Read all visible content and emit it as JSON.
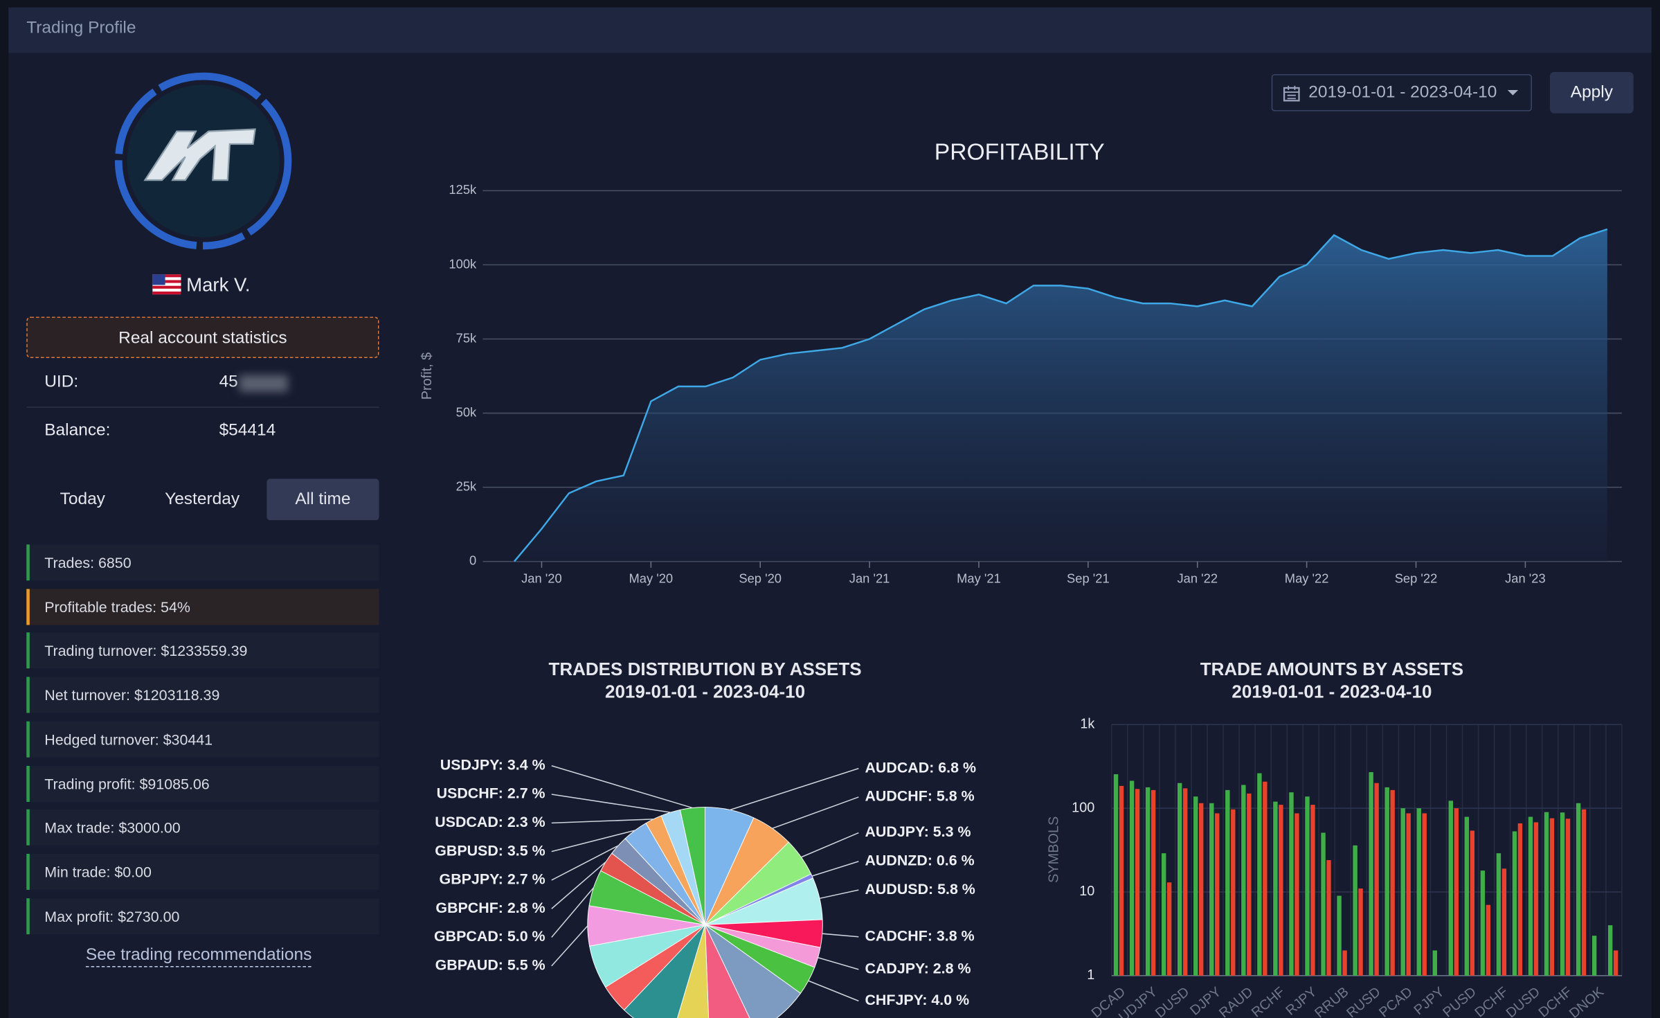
{
  "header": {
    "title": "Trading Profile"
  },
  "profile": {
    "name": "Mark V.",
    "badge": "Real account statistics",
    "uid_label": "UID:",
    "uid": "45",
    "balance_label": "Balance:",
    "balance": "$54414"
  },
  "tabs": [
    "Today",
    "Yesterday",
    "All time"
  ],
  "stats": [
    "Trades: 6850",
    "Profitable trades: 54%",
    "Trading turnover: $1233559.39",
    "Net turnover: $1203118.39",
    "Hedged turnover: $30441",
    "Trading profit: $91085.06",
    "Max trade: $3000.00",
    "Min trade: $0.00",
    "Max profit: $2730.00"
  ],
  "link": "See trading recommendations",
  "filter": {
    "date_range": "2019-01-01 - 2023-04-10",
    "apply": "Apply"
  },
  "chart_data": [
    {
      "type": "line",
      "title": "PROFITABILITY",
      "ylabel": "Profit, $",
      "color": "#3fa9e8",
      "grid": true,
      "x": [
        "2019-12",
        "2020-01",
        "2020-02",
        "2020-03",
        "2020-04",
        "2020-05",
        "2020-06",
        "2020-07",
        "2020-08",
        "2020-09",
        "2020-10",
        "2020-11",
        "2020-12",
        "2021-01",
        "2021-02",
        "2021-03",
        "2021-04",
        "2021-05",
        "2021-06",
        "2021-07",
        "2021-08",
        "2021-09",
        "2021-10",
        "2021-11",
        "2021-12",
        "2022-01",
        "2022-02",
        "2022-03",
        "2022-04",
        "2022-05",
        "2022-06",
        "2022-07",
        "2022-08",
        "2022-09",
        "2022-10",
        "2022-11",
        "2022-12",
        "2023-01",
        "2023-02",
        "2023-03",
        "2023-04"
      ],
      "values": [
        0,
        11000,
        23000,
        27000,
        29000,
        54000,
        59000,
        59000,
        62000,
        68000,
        70000,
        71000,
        72000,
        75000,
        80000,
        85000,
        88000,
        90000,
        87000,
        93000,
        93000,
        92000,
        89000,
        87000,
        87000,
        86000,
        88000,
        86000,
        96000,
        100000,
        110000,
        105000,
        102000,
        104000,
        105000,
        104000,
        105000,
        103000,
        103000,
        109000,
        112000
      ],
      "xlim": [
        "2019-11",
        "2023-05"
      ],
      "xticks": [
        {
          "value": "2020-01",
          "label": "Jan '20"
        },
        {
          "value": "2020-05",
          "label": "May '20"
        },
        {
          "value": "2020-09",
          "label": "Sep '20"
        },
        {
          "value": "2021-01",
          "label": "Jan '21"
        },
        {
          "value": "2021-05",
          "label": "May '21"
        },
        {
          "value": "2021-09",
          "label": "Sep '21"
        },
        {
          "value": "2022-01",
          "label": "Jan '22"
        },
        {
          "value": "2022-05",
          "label": "May '22"
        },
        {
          "value": "2022-09",
          "label": "Sep '22"
        },
        {
          "value": "2023-01",
          "label": "Jan '23"
        }
      ],
      "ylim": [
        0,
        125000
      ],
      "yticks": [
        0,
        {
          "value": 25000,
          "label": "25k"
        },
        {
          "value": 50000,
          "label": "50k"
        },
        {
          "value": 75000,
          "label": "75k"
        },
        {
          "value": 100000,
          "label": "100k"
        },
        {
          "value": 125000,
          "label": "125k"
        }
      ]
    },
    {
      "type": "pie",
      "title": "TRADES DISTRIBUTION BY ASSETS",
      "subtitle": "2019-01-01 - 2023-04-10",
      "values": [
        6.8,
        5.8,
        5.3,
        0.6,
        5.8,
        3.8,
        2.8,
        4.0,
        8.0,
        6.5,
        5.2,
        7.5,
        4.0,
        6.0,
        5.5,
        5.0,
        2.8,
        2.7,
        3.5,
        2.3,
        2.7,
        3.4
      ],
      "value_labels": [
        "AUDCAD: 6.8 %",
        "AUDCHF: 5.8 %",
        "AUDJPY: 5.3 %",
        "AUDNZD: 0.6 %",
        "AUDUSD: 5.8 %",
        "CADCHF: 3.8 %",
        "CADJPY: 2.8 %",
        "CHFJPY: 4.0 %",
        null,
        null,
        null,
        null,
        null,
        null,
        "GBPAUD: 5.5 %",
        "GBPCAD: 5.0 %",
        "GBPCHF: 2.8 %",
        "GBPJPY: 2.7 %",
        "GBPUSD: 3.5 %",
        "USDCAD: 2.3 %",
        "USDCHF: 2.7 %",
        "USDJPY: 3.4 %"
      ],
      "colors": [
        "#7cb5ec",
        "#f7a35c",
        "#90ed7d",
        "#8085e9",
        "#aff0ef",
        "#f7195a",
        "#f59ad8",
        "#4bc142",
        "#7d9bc1",
        "#f15c80",
        "#e4d354",
        "#2b908f",
        "#f45b5b",
        "#91e8e1",
        "#f39be0",
        "#4cc44a",
        "#e4544f",
        "#7d8fb5",
        "#7fb3ea",
        "#f5a55c",
        "#a4d8f5",
        "#46c14a"
      ]
    },
    {
      "type": "bar",
      "title": "TRADE AMOUNTS BY ASSETS",
      "subtitle": "2019-01-01 - 2023-04-10",
      "ylabel": "SYMBOLS",
      "log": true,
      "grid": true,
      "categories": [
        "DCAD",
        null,
        "UDJPY",
        null,
        "DUSD",
        null,
        "DJPY",
        null,
        "RAUD",
        null,
        "RCHF",
        null,
        "RJPY",
        null,
        "RRUB",
        null,
        "RUSD",
        null,
        "PCAD",
        null,
        "PJPY",
        null,
        "PUSD",
        null,
        "DCHF",
        null,
        "DUSD",
        null,
        "DCHF",
        null,
        "DNOK",
        null
      ],
      "series": [
        {
          "color": "#3fae49",
          "values": [
            255,
            213,
            178,
            29,
            200,
            138,
            115,
            165,
            190,
            262,
            120,
            155,
            138,
            51,
            9,
            36,
            270,
            178,
            100,
            100,
            2,
            123,
            79,
            18,
            29,
            53,
            79,
            90,
            89,
            115,
            3,
            4
          ]
        },
        {
          "color": "#e8412c",
          "values": [
            185,
            170,
            165,
            13,
            173,
            115,
            87,
            97,
            150,
            208,
            110,
            87,
            110,
            24,
            2,
            11,
            200,
            165,
            87,
            87,
            null,
            100,
            54,
            7,
            19,
            66,
            68,
            76,
            75,
            97,
            null,
            2
          ]
        }
      ],
      "ylim": [
        1,
        1000
      ],
      "yticks": [
        1,
        10,
        100,
        {
          "value": 1000,
          "label": "1k"
        }
      ]
    }
  ]
}
